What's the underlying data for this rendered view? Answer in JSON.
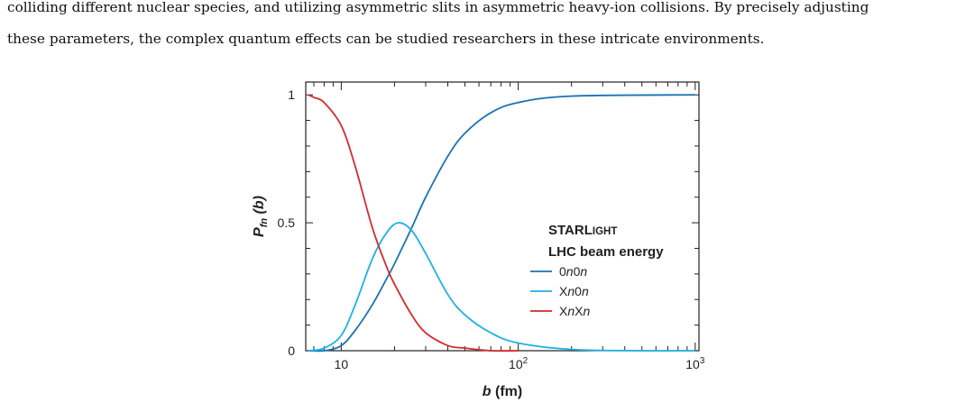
{
  "text": {
    "line1": "colliding different nuclear species, and utilizing asymmetric slits in asymmetric heavy-ion collisions. By precisely adjusting",
    "line2": "these parameters, the complex quantum effects can be studied researchers in these intricate environments."
  },
  "chart_data": {
    "type": "line",
    "xlabel": "b (fm)",
    "ylabel": "P_fn (b)",
    "xscale": "log",
    "xlim": [
      6.3,
      1050
    ],
    "ylim": [
      0,
      1.05
    ],
    "x_ticks": [
      "10",
      "10^2",
      "10^3"
    ],
    "y_ticks": [
      "0",
      "0.5",
      "1"
    ],
    "legend_title_1": "STARLIGHT",
    "legend_title_2": "LHC beam energy",
    "legend_position": "right-center",
    "series": [
      {
        "name": "0n0n",
        "color": "#1a72b4",
        "x": [
          6.5,
          8,
          10,
          12,
          15,
          18,
          20,
          25,
          30,
          40,
          50,
          70,
          100,
          200,
          1000
        ],
        "y": [
          0.0,
          0.0,
          0.02,
          0.08,
          0.18,
          0.28,
          0.34,
          0.48,
          0.6,
          0.76,
          0.85,
          0.93,
          0.97,
          0.995,
          1.0
        ]
      },
      {
        "name": "Xn0n",
        "color": "#1eb1e7",
        "x": [
          6.5,
          8,
          10,
          12,
          15,
          18,
          21,
          25,
          30,
          40,
          50,
          70,
          100,
          200,
          500,
          1000
        ],
        "y": [
          0.0,
          0.01,
          0.06,
          0.18,
          0.36,
          0.46,
          0.5,
          0.47,
          0.38,
          0.22,
          0.14,
          0.07,
          0.03,
          0.005,
          0.0,
          0.0
        ]
      },
      {
        "name": "XnXn",
        "color": "#d6292e",
        "x": [
          6.5,
          7,
          8,
          10,
          12,
          15,
          18,
          20,
          25,
          30,
          40,
          50,
          70,
          100
        ],
        "y": [
          1.0,
          0.99,
          0.97,
          0.88,
          0.72,
          0.48,
          0.33,
          0.26,
          0.14,
          0.07,
          0.02,
          0.01,
          0.0,
          0.0
        ]
      }
    ]
  }
}
